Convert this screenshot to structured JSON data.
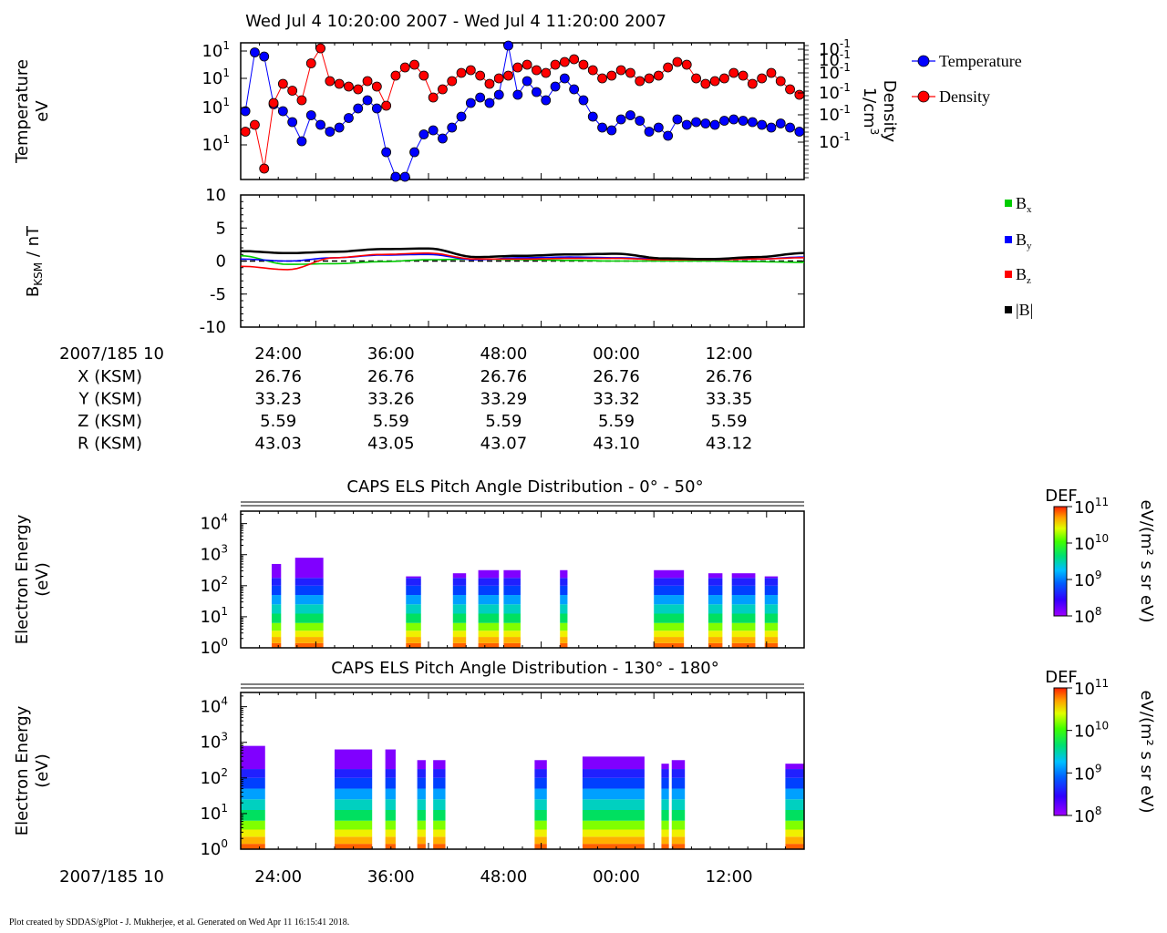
{
  "title": "Wed Jul 4 10:20:00 2007 - Wed Jul 4 11:20:00 2007",
  "footer": "Plot created by SDDAS/gPlot - J. Mukherjee, et al.  Generated on Wed Apr 11 16:15:41 2018.",
  "time_axis": {
    "ticks": [
      "24:00",
      "36:00",
      "48:00",
      "00:00",
      "12:00"
    ],
    "date_label": "2007/185 10"
  },
  "ephemeris": {
    "rows": [
      {
        "label": "X (KSM)",
        "values": [
          "26.76",
          "26.76",
          "26.76",
          "26.76",
          "26.76"
        ]
      },
      {
        "label": "Y (KSM)",
        "values": [
          "33.23",
          "33.26",
          "33.29",
          "33.32",
          "33.35"
        ]
      },
      {
        "label": "Z (KSM)",
        "values": [
          "5.59",
          "5.59",
          "5.59",
          "5.59",
          "5.59"
        ]
      },
      {
        "label": "R (KSM)",
        "values": [
          "43.03",
          "43.05",
          "43.07",
          "43.10",
          "43.12"
        ]
      }
    ]
  },
  "colors": {
    "temperature": "#0000ff",
    "density": "#ff0000",
    "bx": "#00cc00",
    "by": "#0000ff",
    "bz": "#ff0000",
    "btot": "#000000"
  },
  "chart_data": [
    {
      "type": "line",
      "ylabel_1": "Temperature",
      "ylabel_2": "eV",
      "right_ylabel_1": "Density",
      "right_ylabel_2": "1/cm",
      "right_ylabel_sup": "3",
      "left_ticks": [
        {
          "base": "10",
          "exp": "1"
        },
        {
          "base": "10",
          "exp": "1"
        },
        {
          "base": "10",
          "exp": "1"
        },
        {
          "base": "10",
          "exp": "1"
        }
      ],
      "right_ticks": [
        {
          "base": "10",
          "exp": "-1"
        },
        {
          "base": "10",
          "exp": "-1"
        },
        {
          "base": "10",
          "exp": "-1"
        },
        {
          "base": "10",
          "exp": "-1"
        },
        {
          "base": "10",
          "exp": "-1"
        },
        {
          "base": "10",
          "exp": "-1"
        }
      ],
      "legend": [
        "Temperature",
        "Density"
      ],
      "legend_position": "right",
      "y_scale": "log",
      "x_minutes": [
        0,
        1,
        2,
        3,
        4,
        5,
        6,
        7,
        8,
        9,
        10,
        11,
        12,
        13,
        14,
        15,
        16,
        17,
        18,
        19,
        20,
        21,
        22,
        23,
        24,
        25,
        26,
        27,
        28,
        29,
        30,
        31,
        32,
        33,
        34,
        35,
        36,
        37,
        38,
        39,
        40,
        41,
        42,
        43,
        44,
        45,
        46,
        47,
        48,
        49,
        50,
        51,
        52,
        53,
        54,
        55,
        56,
        57,
        58,
        59
      ],
      "series": [
        {
          "name": "Temperature",
          "values": [
            0.5,
            0.93,
            0.9,
            0.55,
            0.5,
            0.42,
            0.28,
            0.47,
            0.4,
            0.35,
            0.38,
            0.45,
            0.52,
            0.58,
            0.52,
            0.2,
            0.02,
            0.02,
            0.2,
            0.33,
            0.36,
            0.3,
            0.38,
            0.46,
            0.56,
            0.6,
            0.56,
            0.62,
            0.98,
            0.62,
            0.72,
            0.64,
            0.58,
            0.68,
            0.74,
            0.66,
            0.58,
            0.46,
            0.38,
            0.36,
            0.44,
            0.47,
            0.43,
            0.35,
            0.38,
            0.32,
            0.44,
            0.4,
            0.42,
            0.41,
            0.4,
            0.43,
            0.44,
            0.43,
            0.42,
            0.4,
            0.38,
            0.41,
            0.38,
            0.35
          ]
        },
        {
          "name": "Density",
          "values": [
            0.35,
            0.4,
            0.08,
            0.56,
            0.7,
            0.65,
            0.58,
            0.85,
            0.96,
            0.72,
            0.7,
            0.68,
            0.66,
            0.72,
            0.68,
            0.54,
            0.76,
            0.82,
            0.84,
            0.76,
            0.6,
            0.66,
            0.72,
            0.78,
            0.8,
            0.76,
            0.7,
            0.74,
            0.76,
            0.82,
            0.84,
            0.8,
            0.78,
            0.84,
            0.86,
            0.88,
            0.84,
            0.8,
            0.74,
            0.76,
            0.8,
            0.78,
            0.72,
            0.74,
            0.76,
            0.82,
            0.86,
            0.84,
            0.74,
            0.7,
            0.72,
            0.74,
            0.78,
            0.76,
            0.7,
            0.74,
            0.78,
            0.72,
            0.66,
            0.62
          ]
        }
      ]
    },
    {
      "type": "line",
      "ylabel": "B",
      "ylabel_sub": "KSM",
      "ylabel_unit": " / nT",
      "ylim": [
        -10,
        10
      ],
      "y_ticks": [
        "10",
        "5",
        "0",
        "-5",
        "-10"
      ],
      "legend": [
        "B",
        "B",
        "B",
        "|B|"
      ],
      "legend_subs": [
        "x",
        "y",
        "z",
        ""
      ],
      "legend_position": "right",
      "x_minutes": [
        0,
        5,
        10,
        15,
        20,
        25,
        30,
        35,
        40,
        45,
        50,
        55,
        60
      ],
      "series": [
        {
          "name": "Bx",
          "values": [
            0.8,
            -0.5,
            -0.4,
            -0.1,
            0.2,
            0.3,
            0.2,
            0.1,
            0.0,
            0.0,
            0.0,
            -0.1,
            -0.2
          ]
        },
        {
          "name": "By",
          "values": [
            0.3,
            0.0,
            0.5,
            0.9,
            1.0,
            0.2,
            0.5,
            0.6,
            0.5,
            0.3,
            0.2,
            0.3,
            0.6
          ]
        },
        {
          "name": "Bz",
          "values": [
            -0.8,
            -1.3,
            0.5,
            1.0,
            1.2,
            0.3,
            0.3,
            0.4,
            0.4,
            0.2,
            0.2,
            0.3,
            0.5
          ]
        },
        {
          "name": "|B|",
          "values": [
            1.5,
            1.2,
            1.4,
            1.8,
            1.9,
            0.6,
            0.8,
            1.0,
            1.1,
            0.4,
            0.3,
            0.6,
            1.2
          ]
        }
      ]
    },
    {
      "type": "heatmap",
      "title": "CAPS ELS Pitch Angle Distribution - 0° - 50°",
      "ylabel_1": "Electron Energy",
      "ylabel_2": "(eV)",
      "y_ticks": [
        {
          "base": "10",
          "exp": "4"
        },
        {
          "base": "10",
          "exp": "3"
        },
        {
          "base": "10",
          "exp": "2"
        },
        {
          "base": "10",
          "exp": "1"
        },
        {
          "base": "10",
          "exp": "0"
        }
      ],
      "colorbar": {
        "title": "DEF",
        "unit": "eV/(m² s sr eV)",
        "ticks": [
          {
            "base": "10",
            "exp": "11"
          },
          {
            "base": "10",
            "exp": "10"
          },
          {
            "base": "10",
            "exp": "9"
          },
          {
            "base": "10",
            "exp": "8"
          }
        ]
      },
      "blocks_minutes": [
        [
          3.3,
          4.3
        ],
        [
          5.8,
          8.8
        ],
        [
          17.6,
          19.2
        ],
        [
          22.6,
          24.0
        ],
        [
          25.3,
          27.5
        ],
        [
          28.0,
          29.8
        ],
        [
          34.0,
          34.8
        ],
        [
          44.0,
          47.2
        ],
        [
          49.8,
          51.3
        ],
        [
          52.3,
          54.8
        ],
        [
          55.8,
          57.2
        ]
      ],
      "block_tops": [
        2.7,
        2.9,
        2.3,
        2.4,
        2.5,
        2.5,
        2.5,
        2.5,
        2.4,
        2.4,
        2.3
      ]
    },
    {
      "type": "heatmap",
      "title": "CAPS ELS Pitch Angle Distribution - 130° - 180°",
      "ylabel_1": "Electron Energy",
      "ylabel_2": "(eV)",
      "y_ticks": [
        {
          "base": "10",
          "exp": "4"
        },
        {
          "base": "10",
          "exp": "3"
        },
        {
          "base": "10",
          "exp": "2"
        },
        {
          "base": "10",
          "exp": "1"
        },
        {
          "base": "10",
          "exp": "0"
        }
      ],
      "colorbar": {
        "title": "DEF",
        "unit": "eV/(m² s sr eV)",
        "ticks": [
          {
            "base": "10",
            "exp": "11"
          },
          {
            "base": "10",
            "exp": "10"
          },
          {
            "base": "10",
            "exp": "9"
          },
          {
            "base": "10",
            "exp": "8"
          }
        ]
      },
      "blocks_minutes": [
        [
          0.0,
          2.6
        ],
        [
          10.0,
          14.0
        ],
        [
          15.4,
          16.5
        ],
        [
          18.8,
          19.7
        ],
        [
          20.5,
          21.8
        ],
        [
          31.3,
          32.6
        ],
        [
          36.4,
          43.0
        ],
        [
          44.8,
          45.6
        ],
        [
          45.9,
          47.3
        ],
        [
          58.0,
          60.0
        ]
      ],
      "block_tops": [
        2.9,
        2.8,
        2.8,
        2.5,
        2.5,
        2.5,
        2.6,
        2.4,
        2.5,
        2.4
      ]
    }
  ]
}
